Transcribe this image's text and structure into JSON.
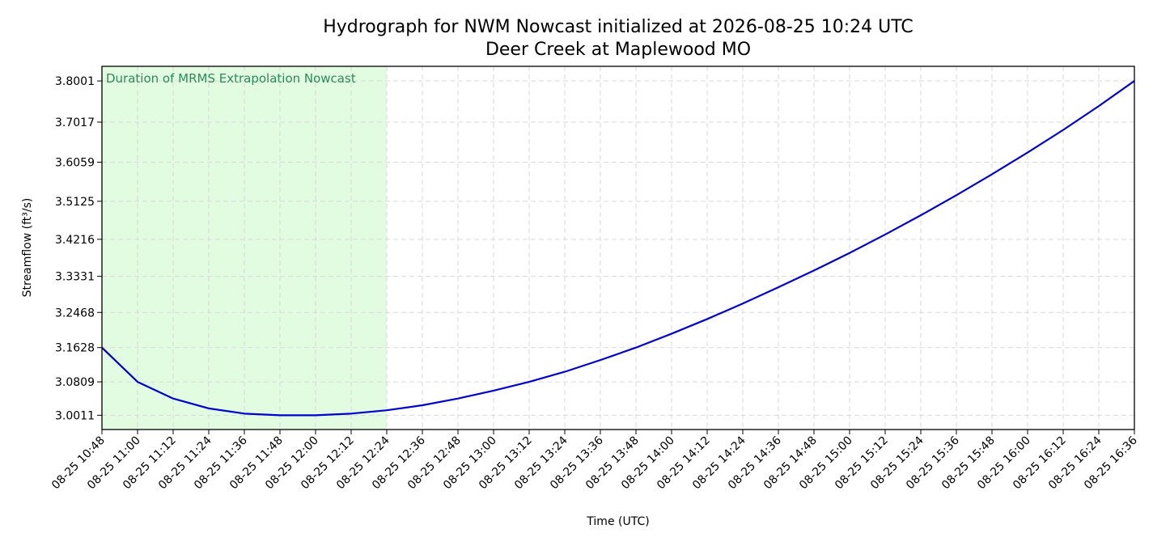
{
  "chart_data": {
    "type": "line",
    "title": "Hydrograph for NWM Nowcast initialized at 2026-08-25 10:24 UTC",
    "subtitle": "Deer Creek at Maplewood MO",
    "xlabel": "Time (UTC)",
    "ylabel": "Streamflow (ft³/s)",
    "x_ticks": [
      "08-25 10:48",
      "08-25 11:00",
      "08-25 11:12",
      "08-25 11:24",
      "08-25 11:36",
      "08-25 11:48",
      "08-25 12:00",
      "08-25 12:12",
      "08-25 12:24",
      "08-25 12:36",
      "08-25 12:48",
      "08-25 13:00",
      "08-25 13:12",
      "08-25 13:24",
      "08-25 13:36",
      "08-25 13:48",
      "08-25 14:00",
      "08-25 14:12",
      "08-25 14:24",
      "08-25 14:36",
      "08-25 14:48",
      "08-25 15:00",
      "08-25 15:12",
      "08-25 15:24",
      "08-25 15:36",
      "08-25 15:48",
      "08-25 16:00",
      "08-25 16:12",
      "08-25 16:24",
      "08-25 16:36"
    ],
    "y_ticks": [
      "3.0011",
      "3.0809",
      "3.1628",
      "3.2468",
      "3.3331",
      "3.4216",
      "3.5125",
      "3.6059",
      "3.7017",
      "3.8001"
    ],
    "ylim": [
      2.967,
      3.835
    ],
    "grid": true,
    "shaded_region": {
      "x_start": "08-25 10:48",
      "x_end": "08-25 12:24",
      "label": "Duration of MRMS Extrapolation Nowcast",
      "color": "#e2fce2",
      "label_color": "#2e8b57"
    },
    "series": [
      {
        "color": "#0000cc",
        "x": [
          "08-25 10:48",
          "08-25 11:00",
          "08-25 11:12",
          "08-25 11:24",
          "08-25 11:36",
          "08-25 11:48",
          "08-25 12:00",
          "08-25 12:12",
          "08-25 12:24",
          "08-25 12:36",
          "08-25 12:48",
          "08-25 13:00",
          "08-25 13:12",
          "08-25 13:24",
          "08-25 13:36",
          "08-25 13:48",
          "08-25 14:00",
          "08-25 14:12",
          "08-25 14:24",
          "08-25 14:36",
          "08-25 14:48",
          "08-25 15:00",
          "08-25 15:12",
          "08-25 15:24",
          "08-25 15:36",
          "08-25 15:48",
          "08-25 16:00",
          "08-25 16:12",
          "08-25 16:24",
          "08-25 16:36"
        ],
        "values": [
          3.1628,
          3.0809,
          3.041,
          3.0175,
          3.005,
          3.0011,
          3.0011,
          3.005,
          3.013,
          3.025,
          3.041,
          3.06,
          3.0809,
          3.105,
          3.133,
          3.1628,
          3.196,
          3.231,
          3.268,
          3.307,
          3.347,
          3.389,
          3.433,
          3.479,
          3.527,
          3.577,
          3.629,
          3.683,
          3.74,
          3.8001
        ]
      }
    ]
  }
}
